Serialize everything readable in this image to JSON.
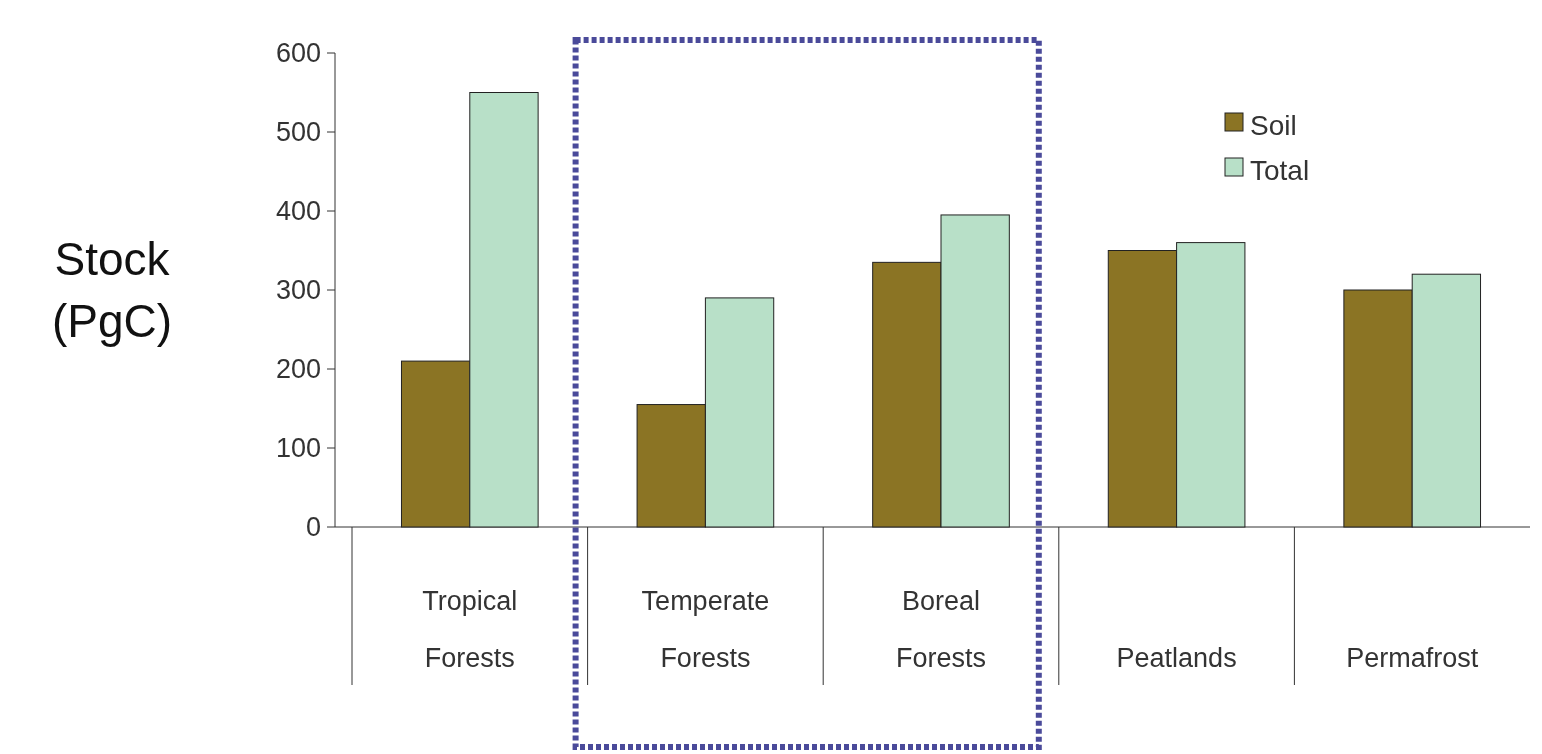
{
  "chart_data": {
    "type": "bar",
    "ylabel": "Stock (PgC)",
    "categories": [
      "Tropical Forests",
      "Temperate Forests",
      "Boreal Forests",
      "Peatlands",
      "Permafrost"
    ],
    "series": [
      {
        "name": "Soil",
        "color": "#8b7424",
        "values": [
          210,
          155,
          335,
          350,
          300
        ]
      },
      {
        "name": "Total",
        "color": "#b8e0c8",
        "values": [
          550,
          290,
          395,
          360,
          320
        ]
      }
    ],
    "ylim": [
      0,
      600
    ],
    "yticks": [
      0,
      100,
      200,
      300,
      400,
      500,
      600
    ],
    "legend": "top right"
  }
}
